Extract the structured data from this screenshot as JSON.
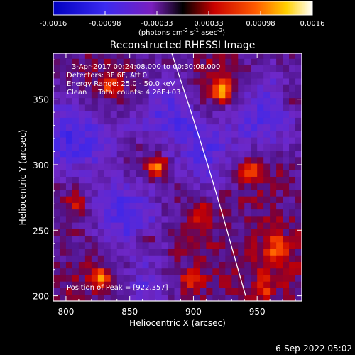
{
  "chart_data": {
    "type": "heatmap",
    "title": "Reconstructed RHESSI Image",
    "xlabel": "Heliocentric X (arcsec)",
    "ylabel": "Heliocentric Y (arcsec)",
    "xlim": [
      790,
      985
    ],
    "ylim": [
      196,
      385
    ],
    "xticks": [
      800,
      850,
      900,
      950
    ],
    "yticks": [
      200,
      250,
      300,
      350
    ],
    "grid": false,
    "colorbar": {
      "location": "top",
      "range": [
        -0.0016,
        0.0016
      ],
      "ticks": [
        "-0.0016",
        "-0.00098",
        "-0.00033",
        "0.00033",
        "0.00098",
        "0.0016"
      ],
      "units_parts": [
        "(photons cm",
        "-2",
        " s",
        "-1",
        " asec",
        "-2",
        ")"
      ]
    },
    "annotations": [
      "3-Apr-2017 00:24:08.000 to 00:30:08.000",
      "Detectors: 3F 6F, Att 0",
      "Energy Range: 25.0 - 50.0 keV",
      "Clean     Total counts: 4.26E+03"
    ],
    "peak_label": "Position of Peak = [922,357]",
    "peak": [
      922,
      357
    ],
    "limb": [
      [
        883,
        385
      ],
      [
        905,
        320
      ],
      [
        922,
        265
      ],
      [
        935,
        220
      ],
      [
        941,
        200
      ]
    ],
    "sources": [
      {
        "x": 922,
        "y": 357,
        "amp": 1.0
      },
      {
        "x": 872,
        "y": 298,
        "amp": 0.85
      },
      {
        "x": 943,
        "y": 295,
        "amp": 0.75
      },
      {
        "x": 828,
        "y": 213,
        "amp": 0.8
      },
      {
        "x": 905,
        "y": 262,
        "amp": 0.6
      },
      {
        "x": 965,
        "y": 237,
        "amp": 0.6
      },
      {
        "x": 835,
        "y": 360,
        "amp": 0.55
      },
      {
        "x": 862,
        "y": 243,
        "amp": 0.55
      },
      {
        "x": 975,
        "y": 350,
        "amp": 0.45
      },
      {
        "x": 898,
        "y": 212,
        "amp": 0.55
      },
      {
        "x": 808,
        "y": 272,
        "amp": 0.45
      },
      {
        "x": 955,
        "y": 205,
        "amp": 0.4
      }
    ],
    "negative_regions": [
      {
        "x": 955,
        "y": 343,
        "amp": 0.55
      },
      {
        "x": 805,
        "y": 320,
        "amp": 0.5
      },
      {
        "x": 850,
        "y": 262,
        "amp": 0.55
      },
      {
        "x": 912,
        "y": 300,
        "amp": 0.4
      },
      {
        "x": 860,
        "y": 210,
        "amp": 0.35
      },
      {
        "x": 880,
        "y": 335,
        "amp": 0.4
      }
    ]
  },
  "footer": {
    "date": "6-Sep-2022 05:02"
  }
}
